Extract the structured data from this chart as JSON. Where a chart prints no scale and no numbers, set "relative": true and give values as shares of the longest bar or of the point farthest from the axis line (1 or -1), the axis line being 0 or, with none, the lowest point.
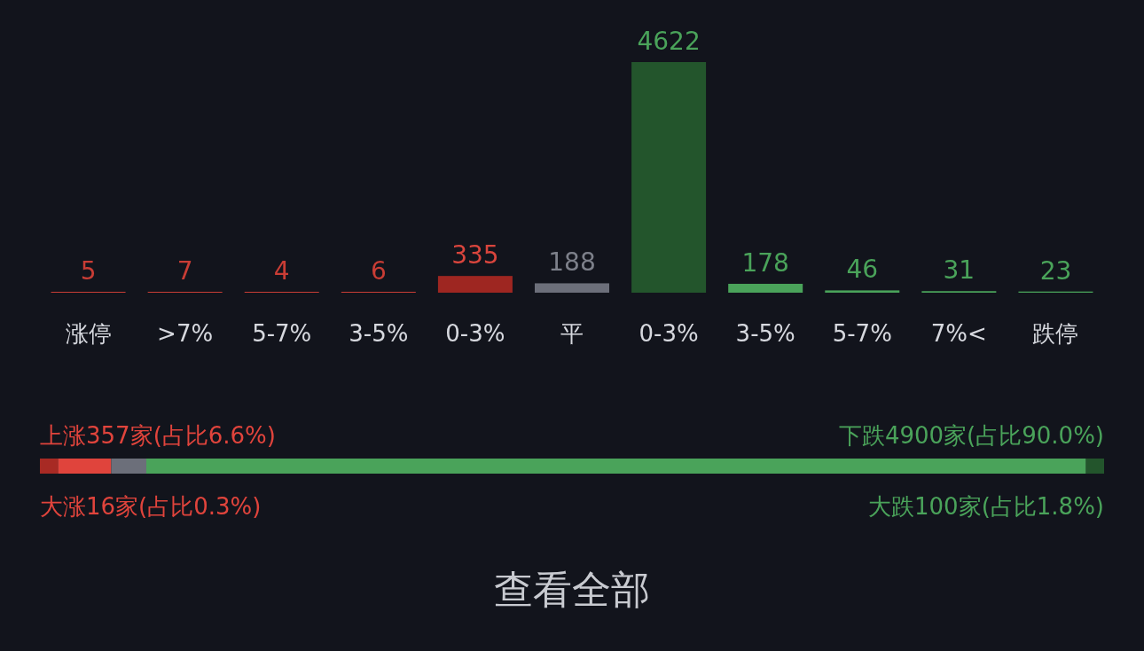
{
  "chart_data": [
    {
      "type": "bar",
      "categories": [
        "涨停",
        ">7%",
        "5-7%",
        "3-5%",
        "0-3%",
        "平",
        "0-3%",
        "3-5%",
        "5-7%",
        "7%<",
        "跌停"
      ],
      "values": [
        5,
        7,
        4,
        6,
        335,
        188,
        4622,
        178,
        46,
        31,
        23
      ],
      "colors": [
        "#c93d35",
        "#c93d35",
        "#c93d35",
        "#c93d35",
        "#9e2621",
        "#6c6f7a",
        "#23552c",
        "#4aa35a",
        "#4aa35a",
        "#4aa35a",
        "#4aa35a"
      ],
      "data_labels": true,
      "relative": false
    },
    {
      "type": "bar",
      "orientation": "horizontal",
      "stacked": true,
      "relative": true,
      "categories": [
        null
      ],
      "series": [
        {
          "color": "#a82a24",
          "values": [
            0.017
          ]
        },
        {
          "color": "#e0443c",
          "values": [
            0.05
          ]
        },
        {
          "color": "#6c6f7a",
          "values": [
            0.033
          ]
        },
        {
          "color": "#4aa35a",
          "values": [
            0.883
          ]
        },
        {
          "color": "#23552c",
          "values": [
            0.017
          ]
        }
      ],
      "annotations": [
        "上涨357家(占比6.6%)",
        "下跌4900家(占比90.0%)",
        "大涨16家(占比0.3%)",
        "大跌100家(占比1.8%)",
        "查看全部"
      ]
    }
  ]
}
